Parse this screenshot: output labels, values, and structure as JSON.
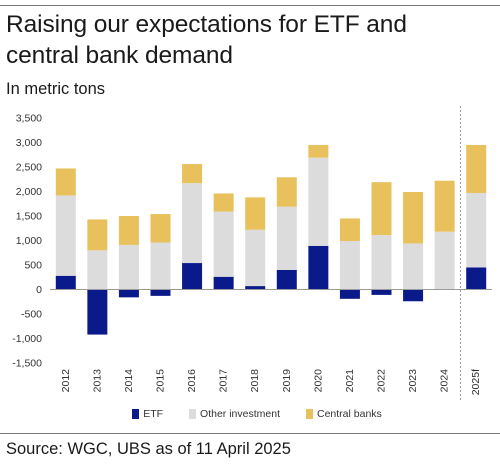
{
  "header": {
    "title": "Raising our expectations for ETF and central bank demand",
    "subtitle": "In metric tons"
  },
  "footer": {
    "source": "Source: WGC, UBS as of 11 April 2025"
  },
  "colors": {
    "etf": "#0b1a8a",
    "other_investment": "#dcdcdc",
    "central_banks": "#e8c15c"
  },
  "chart_data": {
    "type": "bar",
    "stacked": true,
    "categories": [
      "2012",
      "2013",
      "2014",
      "2015",
      "2016",
      "2017",
      "2018",
      "2019",
      "2020",
      "2021",
      "2022",
      "2023",
      "2024",
      "2025f"
    ],
    "series": [
      {
        "name": "ETF",
        "values": [
          280,
          -920,
          -160,
          -130,
          540,
          260,
          70,
          400,
          890,
          -190,
          -110,
          -240,
          0,
          450
        ]
      },
      {
        "name": "Other investment",
        "values": [
          1640,
          800,
          910,
          960,
          1630,
          1330,
          1150,
          1290,
          1800,
          990,
          1110,
          940,
          1180,
          1520
        ]
      },
      {
        "name": "Central banks",
        "values": [
          550,
          630,
          590,
          580,
          390,
          370,
          660,
          600,
          260,
          460,
          1080,
          1050,
          1040,
          980
        ]
      }
    ],
    "ylim": [
      -1500,
      3500
    ],
    "yticks": [
      "3,500",
      "3,000",
      "2,500",
      "2,000",
      "1,500",
      "1,000",
      "500",
      "0",
      "-500",
      "-1,000",
      "-1,500"
    ],
    "xlabel": "",
    "ylabel": "",
    "grid": false,
    "legend": "bottom",
    "forecast_divider_before": "2025f"
  }
}
